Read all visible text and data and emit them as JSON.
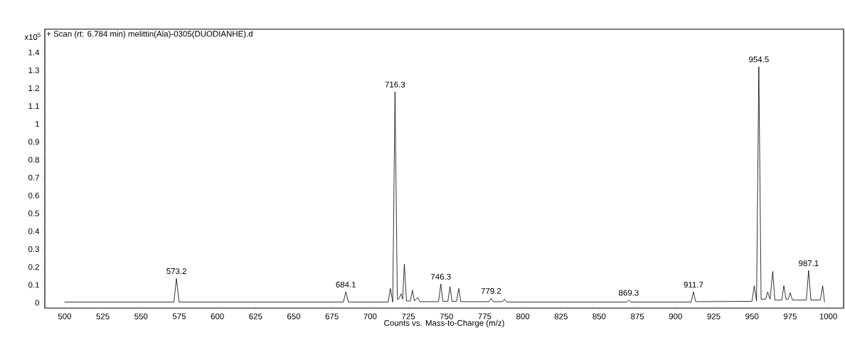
{
  "chart_data": {
    "type": "line",
    "title": "+ Scan (rt: 6.784 min) melittin(Ala)-0305(DUODIANHE).d",
    "xlabel": "Counts vs. Mass-to-Charge (m/z)",
    "x": [
      500,
      571.5,
      573.2,
      574.9,
      682.5,
      684.1,
      685.7,
      711.8,
      713.3,
      714.8,
      716.3,
      717.8,
      718.6,
      720.3,
      721.3,
      722.4,
      723.8,
      726.3,
      727.7,
      729.0,
      731.2,
      732.5,
      744.8,
      746.3,
      747.6,
      750.9,
      752.3,
      753.6,
      756.6,
      758.0,
      759.4,
      777.8,
      779.2,
      780.6,
      786.6,
      788.0,
      789.4,
      867.9,
      869.3,
      870.7,
      910.2,
      911.7,
      913.2,
      950.0,
      951.5,
      953.0,
      954.5,
      956.0,
      958.9,
      960.3,
      961.9,
      963.6,
      965.0,
      969.5,
      970.9,
      972.3,
      973.7,
      975.1,
      976.5,
      985.6,
      987.1,
      988.6,
      994.8,
      996.3,
      997.5
    ],
    "values": [
      0.004,
      0.004,
      0.136,
      0.004,
      0.004,
      0.061,
      0.004,
      0.004,
      0.08,
      0.004,
      1.18,
      0.02,
      0.02,
      0.05,
      0.02,
      0.215,
      0.01,
      0.01,
      0.07,
      0.01,
      0.03,
      0.006,
      0.006,
      0.105,
      0.008,
      0.008,
      0.09,
      0.008,
      0.008,
      0.08,
      0.006,
      0.006,
      0.025,
      0.006,
      0.006,
      0.02,
      0.004,
      0.004,
      0.015,
      0.004,
      0.004,
      0.06,
      0.006,
      0.008,
      0.095,
      0.01,
      1.32,
      0.02,
      0.02,
      0.06,
      0.02,
      0.175,
      0.015,
      0.015,
      0.095,
      0.02,
      0.02,
      0.055,
      0.015,
      0.015,
      0.18,
      0.015,
      0.015,
      0.095,
      0.005
    ],
    "color": "#000000",
    "line_style": "solid",
    "xlim": [
      487,
      1010
    ],
    "ylim": [
      -0.03,
      1.53
    ],
    "xticks": [
      500,
      525,
      550,
      575,
      600,
      625,
      650,
      675,
      700,
      725,
      750,
      775,
      800,
      825,
      850,
      875,
      900,
      925,
      950,
      975,
      1000
    ],
    "yticks": [
      0,
      0.1,
      0.2,
      0.3,
      0.4,
      0.5,
      0.6,
      0.7,
      0.8,
      0.9,
      1,
      1.1,
      1.2,
      1.3,
      1.4
    ],
    "annotations": [
      "x10$^{5}$",
      {
        "text": "573.2",
        "x": 573.2,
        "y": 0.136
      },
      {
        "text": "684.1",
        "x": 684.1,
        "y": 0.061
      },
      {
        "text": "716.3",
        "x": 716.3,
        "y": 1.18
      },
      {
        "text": "746.3",
        "x": 746.3,
        "y": 0.105
      },
      {
        "text": "779.2",
        "x": 779.2,
        "y": 0.025
      },
      {
        "text": "869.3",
        "x": 869.3,
        "y": 0.015
      },
      {
        "text": "911.7",
        "x": 911.7,
        "y": 0.06
      },
      {
        "text": "954.5",
        "x": 954.5,
        "y": 1.32
      },
      {
        "text": "987.1",
        "x": 987.1,
        "y": 0.18
      }
    ]
  }
}
